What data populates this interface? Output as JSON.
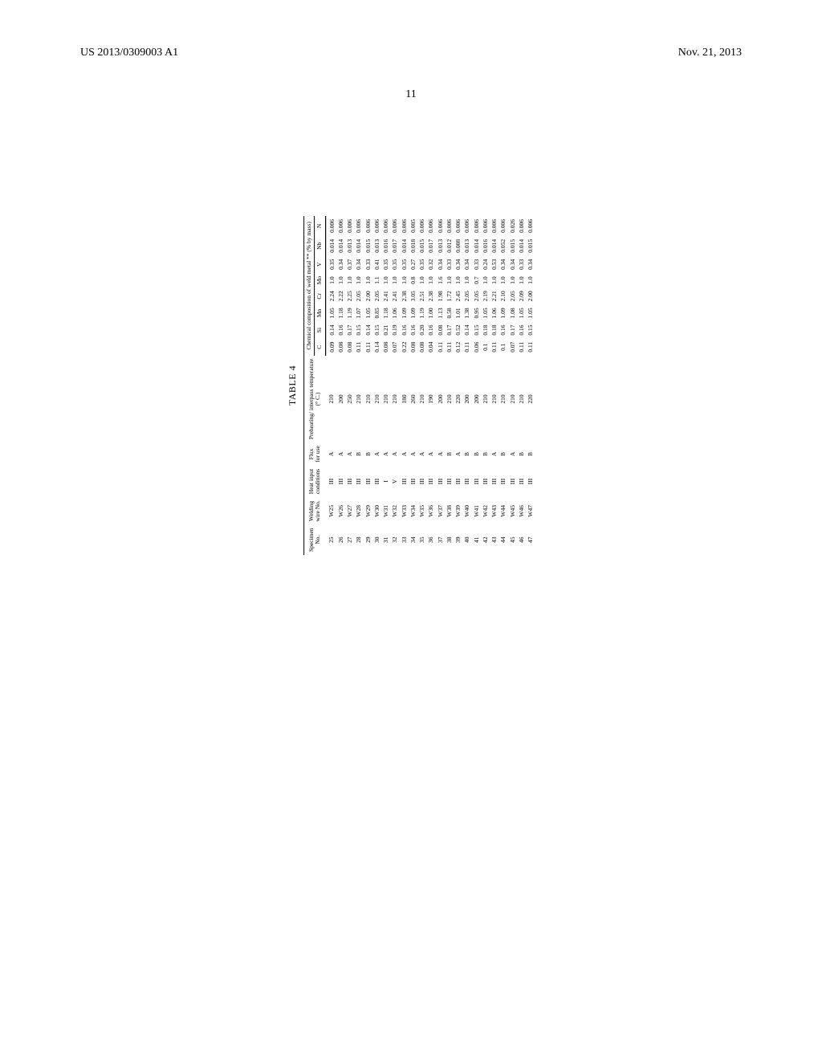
{
  "header": {
    "left": "US 2013/0309003 A1",
    "right": "Nov. 21, 2013"
  },
  "page_number": "11",
  "table": {
    "title": "TABLE 4",
    "header_row1": {
      "specimen": "Specimen",
      "welding": "Welding",
      "heat_input": "Heat input",
      "flux": "Flux",
      "preheat": "Preheating/ interpass temperature",
      "chem_group": "Chemical composition of weld metal ** (% by mass)"
    },
    "header_row2": {
      "no": "No.",
      "wire_no": "wire No.",
      "conditions": "conditions",
      "for_use": "for use",
      "degc": "(° C.)",
      "c": "C",
      "si": "Si",
      "mn": "Mn",
      "cr": "Cr",
      "mo": "Mo",
      "v": "V",
      "nb": "Nb",
      "n": "N"
    },
    "rows": [
      {
        "no": "25",
        "wire": "W25",
        "cond": "III",
        "flux": "A",
        "temp": "210",
        "C": "0.09",
        "Si": "0.14",
        "Mn": "1.05",
        "Cr": "2.24",
        "Mo": "1.0",
        "V": "0.35",
        "Nb": "0.014",
        "N": "0.006"
      },
      {
        "no": "26",
        "wire": "W26",
        "cond": "III",
        "flux": "A",
        "temp": "200",
        "C": "0.08",
        "Si": "0.16",
        "Mn": "1.18",
        "Cr": "2.22",
        "Mo": "1.0",
        "V": "0.34",
        "Nb": "0.014",
        "N": "0.006"
      },
      {
        "no": "27",
        "wire": "W27",
        "cond": "III",
        "flux": "A",
        "temp": "250",
        "C": "0.08",
        "Si": "0.17",
        "Mn": "1.19",
        "Cr": "2.25",
        "Mo": "1.0",
        "V": "0.37",
        "Nb": "0.013",
        "N": "0.006"
      },
      {
        "no": "28",
        "wire": "W28",
        "cond": "III",
        "flux": "B",
        "temp": "210",
        "C": "0.11",
        "Si": "0.15",
        "Mn": "1.07",
        "Cr": "2.05",
        "Mo": "1.0",
        "V": "0.34",
        "Nb": "0.014",
        "N": "0.006"
      },
      {
        "no": "29",
        "wire": "W29",
        "cond": "III",
        "flux": "B",
        "temp": "210",
        "C": "0.11",
        "Si": "0.14",
        "Mn": "1.05",
        "Cr": "2.00",
        "Mo": "1.0",
        "V": "0.33",
        "Nb": "0.015",
        "N": "0.006"
      },
      {
        "no": "30",
        "wire": "W30",
        "cond": "III",
        "flux": "A",
        "temp": "210",
        "C": "0.14",
        "Si": "0.15",
        "Mn": "0.85",
        "Cr": "2.05",
        "Mo": "1.1",
        "V": "0.41",
        "Nb": "0.013",
        "N": "0.006"
      },
      {
        "no": "31",
        "wire": "W31",
        "cond": "I",
        "flux": "A",
        "temp": "210",
        "C": "0.08",
        "Si": "0.21",
        "Mn": "1.18",
        "Cr": "2.41",
        "Mo": "1.0",
        "V": "0.35",
        "Nb": "0.016",
        "N": "0.006"
      },
      {
        "no": "32",
        "wire": "W32",
        "cond": "V",
        "flux": "A",
        "temp": "210",
        "C": "0.07",
        "Si": "0.19",
        "Mn": "1.06",
        "Cr": "2.41",
        "Mo": "1.0",
        "V": "0.35",
        "Nb": "0.017",
        "N": "0.006"
      },
      {
        "no": "33",
        "wire": "W33",
        "cond": "III",
        "flux": "A",
        "temp": "180",
        "C": "0.22",
        "Si": "0.16",
        "Mn": "1.09",
        "Cr": "2.38",
        "Mo": "1.0",
        "V": "0.35",
        "Nb": "0.014",
        "N": "0.006"
      },
      {
        "no": "34",
        "wire": "W34",
        "cond": "III",
        "flux": "A",
        "temp": "260",
        "C": "0.08",
        "Si": "0.16",
        "Mn": "1.09",
        "Cr": "3.05",
        "Mo": "0.8",
        "V": "0.27",
        "Nb": "0.018",
        "N": "0.005"
      },
      {
        "no": "35",
        "wire": "W35",
        "cond": "III",
        "flux": "A",
        "temp": "210",
        "C": "0.08",
        "Si": "0.20",
        "Mn": "1.19",
        "Cr": "2.51",
        "Mo": "1.0",
        "V": "0.35",
        "Nb": "0.015",
        "N": "0.006"
      },
      {
        "no": "36",
        "wire": "W36",
        "cond": "III",
        "flux": "A",
        "temp": "190",
        "C": "0.04",
        "Si": "0.16",
        "Mn": "1.00",
        "Cr": "2.38",
        "Mo": "1.0",
        "V": "0.32",
        "Nb": "0.017",
        "N": "0.006"
      },
      {
        "no": "37",
        "wire": "W37",
        "cond": "III",
        "flux": "A",
        "temp": "200",
        "C": "0.11",
        "Si": "0.08",
        "Mn": "1.13",
        "Cr": "1.98",
        "Mo": "1.6",
        "V": "0.34",
        "Nb": "0.013",
        "N": "0.006"
      },
      {
        "no": "38",
        "wire": "W38",
        "cond": "III",
        "flux": "B",
        "temp": "210",
        "C": "0.11",
        "Si": "0.17",
        "Mn": "0.58",
        "Cr": "1.72",
        "Mo": "1.0",
        "V": "0.33",
        "Nb": "0.012",
        "N": "0.006"
      },
      {
        "no": "39",
        "wire": "W39",
        "cond": "III",
        "flux": "A",
        "temp": "220",
        "C": "0.12",
        "Si": "0.52",
        "Mn": "1.01",
        "Cr": "2.45",
        "Mo": "1.0",
        "V": "0.34",
        "Nb": "0.008",
        "N": "0.006"
      },
      {
        "no": "40",
        "wire": "W40",
        "cond": "III",
        "flux": "B",
        "temp": "200",
        "C": "0.11",
        "Si": "0.14",
        "Mn": "1.38",
        "Cr": "2.05",
        "Mo": "1.0",
        "V": "0.34",
        "Nb": "0.013",
        "N": "0.006"
      },
      {
        "no": "41",
        "wire": "W41",
        "cond": "III",
        "flux": "B",
        "temp": "200",
        "C": "0.06",
        "Si": "0.15",
        "Mn": "0.95",
        "Cr": "2.05",
        "Mo": "0.7",
        "V": "0.33",
        "Nb": "0.014",
        "N": "0.006"
      },
      {
        "no": "42",
        "wire": "W42",
        "cond": "III",
        "flux": "B",
        "temp": "210",
        "C": "0.1",
        "Si": "0.18",
        "Mn": "1.05",
        "Cr": "2.19",
        "Mo": "1.0",
        "V": "0.24",
        "Nb": "0.016",
        "N": "0.006"
      },
      {
        "no": "43",
        "wire": "W43",
        "cond": "III",
        "flux": "A",
        "temp": "210",
        "C": "0.11",
        "Si": "0.18",
        "Mn": "1.06",
        "Cr": "2.21",
        "Mo": "1.0",
        "V": "0.53",
        "Nb": "0.014",
        "N": "0.006"
      },
      {
        "no": "44",
        "wire": "W44",
        "cond": "III",
        "flux": "B",
        "temp": "210",
        "C": "0.1",
        "Si": "0.16",
        "Mn": "1.09",
        "Cr": "2.10",
        "Mo": "1.0",
        "V": "0.34",
        "Nb": "0.052",
        "N": "0.006"
      },
      {
        "no": "45",
        "wire": "W45",
        "cond": "III",
        "flux": "A",
        "temp": "210",
        "C": "0.07",
        "Si": "0.17",
        "Mn": "1.08",
        "Cr": "2.05",
        "Mo": "1.0",
        "V": "0.34",
        "Nb": "0.015",
        "N": "0.026"
      },
      {
        "no": "46",
        "wire": "W46",
        "cond": "III",
        "flux": "B",
        "temp": "210",
        "C": "0.11",
        "Si": "0.16",
        "Mn": "1.05",
        "Cr": "2.09",
        "Mo": "1.0",
        "V": "0.33",
        "Nb": "0.014",
        "N": "0.006"
      },
      {
        "no": "47",
        "wire": "W47",
        "cond": "III",
        "flux": "B",
        "temp": "220",
        "C": "0.11",
        "Si": "0.15",
        "Mn": "1.05",
        "Cr": "2.00",
        "Mo": "1.0",
        "V": "0.34",
        "Nb": "0.015",
        "N": "0.006"
      }
    ]
  }
}
